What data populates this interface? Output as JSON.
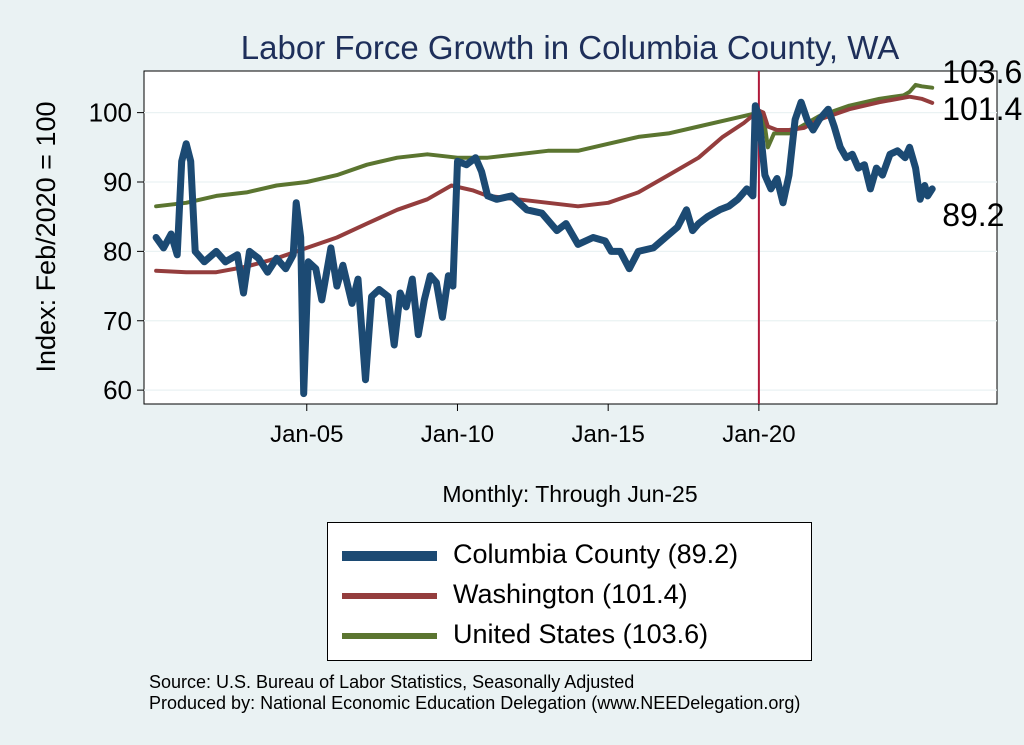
{
  "chart_data": {
    "type": "line",
    "title": "Labor Force Growth in Columbia  County, WA",
    "ylabel": "Index: Feb/2020 = 100",
    "xlabel": "Monthly: Through Jun-25",
    "ylim": [
      58,
      106
    ],
    "yticks": [
      60,
      70,
      80,
      90,
      100
    ],
    "xticks": [
      {
        "label": "Jan-05",
        "x": 2005.0
      },
      {
        "label": "Jan-10",
        "x": 2010.0
      },
      {
        "label": "Jan-15",
        "x": 2015.0
      },
      {
        "label": "Jan-20",
        "x": 2020.0
      }
    ],
    "xlim": [
      1999.6,
      2027.9
    ],
    "reference_line": {
      "x": 2020.0,
      "color": "#b0193a"
    },
    "grid": true,
    "legend_position": "bottom",
    "series": [
      {
        "name": "Columbia  County",
        "legend_label": "Columbia  County (89.2)",
        "end_label": "89.2",
        "color": "#1c4a73",
        "points": [
          [
            2000.0,
            82.0
          ],
          [
            2000.25,
            80.5
          ],
          [
            2000.5,
            82.5
          ],
          [
            2000.7,
            79.5
          ],
          [
            2000.85,
            93.0
          ],
          [
            2001.0,
            95.5
          ],
          [
            2001.15,
            93.0
          ],
          [
            2001.3,
            80.0
          ],
          [
            2001.6,
            78.5
          ],
          [
            2002.0,
            80.0
          ],
          [
            2002.3,
            78.5
          ],
          [
            2002.7,
            79.5
          ],
          [
            2002.9,
            74.0
          ],
          [
            2003.1,
            80.0
          ],
          [
            2003.4,
            79.0
          ],
          [
            2003.7,
            77.0
          ],
          [
            2004.0,
            79.0
          ],
          [
            2004.3,
            77.5
          ],
          [
            2004.55,
            79.5
          ],
          [
            2004.65,
            87.0
          ],
          [
            2004.8,
            82.0
          ],
          [
            2004.9,
            59.5
          ],
          [
            2005.05,
            78.5
          ],
          [
            2005.3,
            77.5
          ],
          [
            2005.5,
            73.0
          ],
          [
            2005.8,
            80.5
          ],
          [
            2006.0,
            75.0
          ],
          [
            2006.2,
            78.0
          ],
          [
            2006.5,
            72.5
          ],
          [
            2006.7,
            76.0
          ],
          [
            2006.95,
            61.5
          ],
          [
            2007.15,
            73.5
          ],
          [
            2007.4,
            74.5
          ],
          [
            2007.7,
            73.5
          ],
          [
            2007.9,
            66.5
          ],
          [
            2008.1,
            74.0
          ],
          [
            2008.3,
            72.0
          ],
          [
            2008.5,
            76.0
          ],
          [
            2008.7,
            68.0
          ],
          [
            2008.9,
            73.0
          ],
          [
            2009.1,
            76.5
          ],
          [
            2009.3,
            75.5
          ],
          [
            2009.5,
            70.5
          ],
          [
            2009.7,
            76.5
          ],
          [
            2009.85,
            75.0
          ],
          [
            2010.0,
            93.0
          ],
          [
            2010.3,
            92.5
          ],
          [
            2010.6,
            93.5
          ],
          [
            2010.8,
            91.5
          ],
          [
            2011.0,
            88.0
          ],
          [
            2011.3,
            87.5
          ],
          [
            2011.8,
            88.0
          ],
          [
            2012.3,
            86.0
          ],
          [
            2012.8,
            85.5
          ],
          [
            2013.3,
            83.0
          ],
          [
            2013.6,
            84.0
          ],
          [
            2014.0,
            81.0
          ],
          [
            2014.5,
            82.0
          ],
          [
            2014.9,
            81.5
          ],
          [
            2015.1,
            80.0
          ],
          [
            2015.4,
            80.0
          ],
          [
            2015.7,
            77.5
          ],
          [
            2016.0,
            80.0
          ],
          [
            2016.5,
            80.5
          ],
          [
            2016.9,
            82.0
          ],
          [
            2017.3,
            83.5
          ],
          [
            2017.6,
            86.0
          ],
          [
            2017.8,
            83.0
          ],
          [
            2018.0,
            84.0
          ],
          [
            2018.3,
            85.0
          ],
          [
            2018.7,
            86.0
          ],
          [
            2019.0,
            86.5
          ],
          [
            2019.3,
            87.5
          ],
          [
            2019.6,
            89.0
          ],
          [
            2019.8,
            88.0
          ],
          [
            2019.88,
            101.0
          ],
          [
            2020.0,
            99.5
          ],
          [
            2020.2,
            91.0
          ],
          [
            2020.4,
            89.0
          ],
          [
            2020.6,
            90.5
          ],
          [
            2020.8,
            87.0
          ],
          [
            2021.0,
            91.0
          ],
          [
            2021.2,
            99.0
          ],
          [
            2021.4,
            101.5
          ],
          [
            2021.6,
            99.0
          ],
          [
            2021.8,
            97.5
          ],
          [
            2022.0,
            99.0
          ],
          [
            2022.3,
            100.5
          ],
          [
            2022.5,
            98.0
          ],
          [
            2022.7,
            95.0
          ],
          [
            2022.9,
            93.5
          ],
          [
            2023.1,
            94.0
          ],
          [
            2023.3,
            92.0
          ],
          [
            2023.5,
            92.5
          ],
          [
            2023.7,
            89.0
          ],
          [
            2023.9,
            92.0
          ],
          [
            2024.1,
            91.0
          ],
          [
            2024.35,
            94.0
          ],
          [
            2024.6,
            94.5
          ],
          [
            2024.85,
            93.5
          ],
          [
            2025.0,
            95.0
          ],
          [
            2025.2,
            92.0
          ],
          [
            2025.35,
            87.5
          ],
          [
            2025.5,
            89.5
          ],
          [
            2025.6,
            88.0
          ],
          [
            2025.75,
            89.0
          ]
        ]
      },
      {
        "name": "Washington",
        "legend_label": "Washington (101.4)",
        "end_label": "101.4",
        "color": "#943d3d",
        "points": [
          [
            2000.0,
            77.2
          ],
          [
            2001.0,
            77.0
          ],
          [
            2002.0,
            77.0
          ],
          [
            2003.0,
            77.8
          ],
          [
            2004.0,
            79.0
          ],
          [
            2005.0,
            80.5
          ],
          [
            2006.0,
            82.0
          ],
          [
            2007.0,
            84.0
          ],
          [
            2008.0,
            86.0
          ],
          [
            2009.0,
            87.5
          ],
          [
            2009.8,
            89.5
          ],
          [
            2010.5,
            88.8
          ],
          [
            2011.0,
            88.0
          ],
          [
            2012.0,
            87.5
          ],
          [
            2013.0,
            87.0
          ],
          [
            2014.0,
            86.5
          ],
          [
            2015.0,
            87.0
          ],
          [
            2016.0,
            88.5
          ],
          [
            2017.0,
            91.0
          ],
          [
            2018.0,
            93.5
          ],
          [
            2018.8,
            96.5
          ],
          [
            2019.5,
            98.5
          ],
          [
            2020.0,
            100.3
          ],
          [
            2020.15,
            100.0
          ],
          [
            2020.3,
            98.0
          ],
          [
            2020.6,
            97.5
          ],
          [
            2021.0,
            97.5
          ],
          [
            2021.5,
            97.8
          ],
          [
            2022.0,
            99.0
          ],
          [
            2023.0,
            100.5
          ],
          [
            2024.0,
            101.5
          ],
          [
            2025.0,
            102.3
          ],
          [
            2025.4,
            102.0
          ],
          [
            2025.75,
            101.4
          ]
        ]
      },
      {
        "name": "United States",
        "legend_label": "United States (103.6)",
        "end_label": "103.6",
        "color": "#5b7530",
        "points": [
          [
            2000.0,
            86.5
          ],
          [
            2001.0,
            87.0
          ],
          [
            2002.0,
            88.0
          ],
          [
            2003.0,
            88.5
          ],
          [
            2004.0,
            89.5
          ],
          [
            2005.0,
            90.0
          ],
          [
            2006.0,
            91.0
          ],
          [
            2007.0,
            92.5
          ],
          [
            2008.0,
            93.5
          ],
          [
            2009.0,
            94.0
          ],
          [
            2010.0,
            93.5
          ],
          [
            2011.0,
            93.5
          ],
          [
            2012.0,
            94.0
          ],
          [
            2013.0,
            94.5
          ],
          [
            2014.0,
            94.5
          ],
          [
            2015.0,
            95.5
          ],
          [
            2016.0,
            96.5
          ],
          [
            2017.0,
            97.0
          ],
          [
            2018.0,
            98.0
          ],
          [
            2019.0,
            99.0
          ],
          [
            2020.0,
            100.0
          ],
          [
            2020.15,
            99.5
          ],
          [
            2020.3,
            95.0
          ],
          [
            2020.5,
            97.0
          ],
          [
            2021.0,
            97.0
          ],
          [
            2022.0,
            99.5
          ],
          [
            2023.0,
            101.0
          ],
          [
            2024.0,
            102.0
          ],
          [
            2024.8,
            102.5
          ],
          [
            2025.0,
            103.0
          ],
          [
            2025.2,
            104.0
          ],
          [
            2025.4,
            103.8
          ],
          [
            2025.75,
            103.6
          ]
        ]
      }
    ]
  },
  "footer": {
    "source": "Source: U.S. Bureau of Labor Statistics, Seasonally Adjusted",
    "produced_by": "Produced by: National Economic Education Delegation (www.NEEDelegation.org)"
  }
}
